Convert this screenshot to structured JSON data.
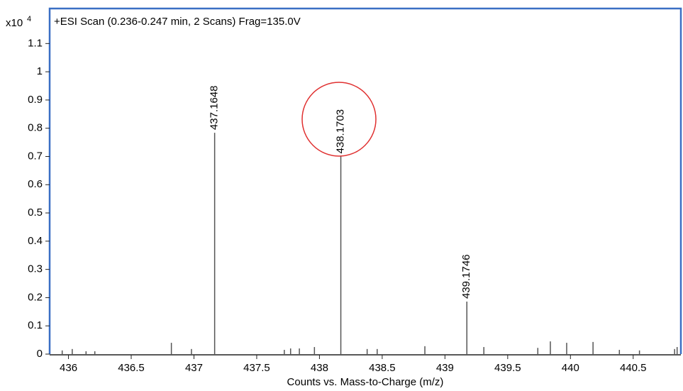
{
  "chart_data": {
    "type": "spectrum",
    "title": "+ESI Scan (0.236-0.247 min, 2 Scans) Frag=135.0V",
    "y_multiplier": "x10",
    "y_multiplier_exponent": "4",
    "x_label": "Counts vs. Mass-to-Charge (m/z)",
    "x": [
      435.95,
      436.03,
      436.14,
      436.21,
      436.82,
      436.98,
      437.72,
      437.77,
      437.84,
      437.96,
      438.38,
      438.46,
      438.84,
      439.31,
      439.74,
      439.84,
      439.97,
      440.18,
      440.39,
      440.55,
      440.83,
      440.85
    ],
    "values": [
      0.013,
      0.018,
      0.01,
      0.01,
      0.04,
      0.018,
      0.015,
      0.02,
      0.02,
      0.025,
      0.018,
      0.018,
      0.028,
      0.025,
      0.022,
      0.045,
      0.04,
      0.043,
      0.015,
      0.013,
      0.018,
      0.025
    ],
    "major_x": [
      437.1648,
      438.1703,
      439.1746
    ],
    "major_values": [
      0.784,
      0.7,
      0.186
    ],
    "color": "#555555",
    "frame_color": "#3a6fc4",
    "xlim": [
      435.85,
      440.88
    ],
    "ylim": [
      0,
      1.224
    ],
    "xticks": [
      436,
      436.5,
      437,
      437.5,
      438,
      438.5,
      439,
      439.5,
      440,
      440.5
    ],
    "yticks": [
      0,
      0.1,
      0.2,
      0.3,
      0.4,
      0.5,
      0.6,
      0.7,
      0.8,
      0.9,
      1,
      1.1
    ]
  }
}
